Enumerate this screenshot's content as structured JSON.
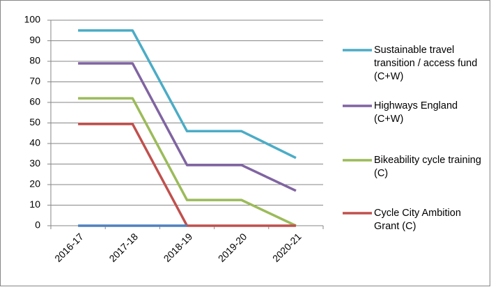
{
  "chart_data": {
    "type": "line",
    "categories": [
      "2016-17",
      "2017-18",
      "2018-19",
      "2019-20",
      "2020-21"
    ],
    "series": [
      {
        "name": "Sustainable travel transition / access fund (C+W)",
        "color": "#4bacc6",
        "values": [
          95,
          95,
          46,
          46,
          33
        ]
      },
      {
        "name": "Highways England (C+W)",
        "color": "#8064a2",
        "values": [
          79,
          79,
          29.5,
          29.5,
          17
        ]
      },
      {
        "name": "Bikeability cycle training (C)",
        "color": "#9bbb59",
        "values": [
          62,
          62,
          12.5,
          12.5,
          0
        ]
      },
      {
        "name": "Cycle City Ambition Grant (C)",
        "color": "#c0504d",
        "values": [
          49.5,
          49.5,
          0,
          0,
          0
        ]
      },
      {
        "color": "#4f81bd",
        "values": [
          0,
          0,
          0,
          null,
          null
        ]
      }
    ],
    "ylim": [
      0,
      100
    ],
    "yticks": [
      0,
      10,
      20,
      30,
      40,
      50,
      60,
      70,
      80,
      90,
      100
    ],
    "grid": true,
    "legend": "right"
  }
}
